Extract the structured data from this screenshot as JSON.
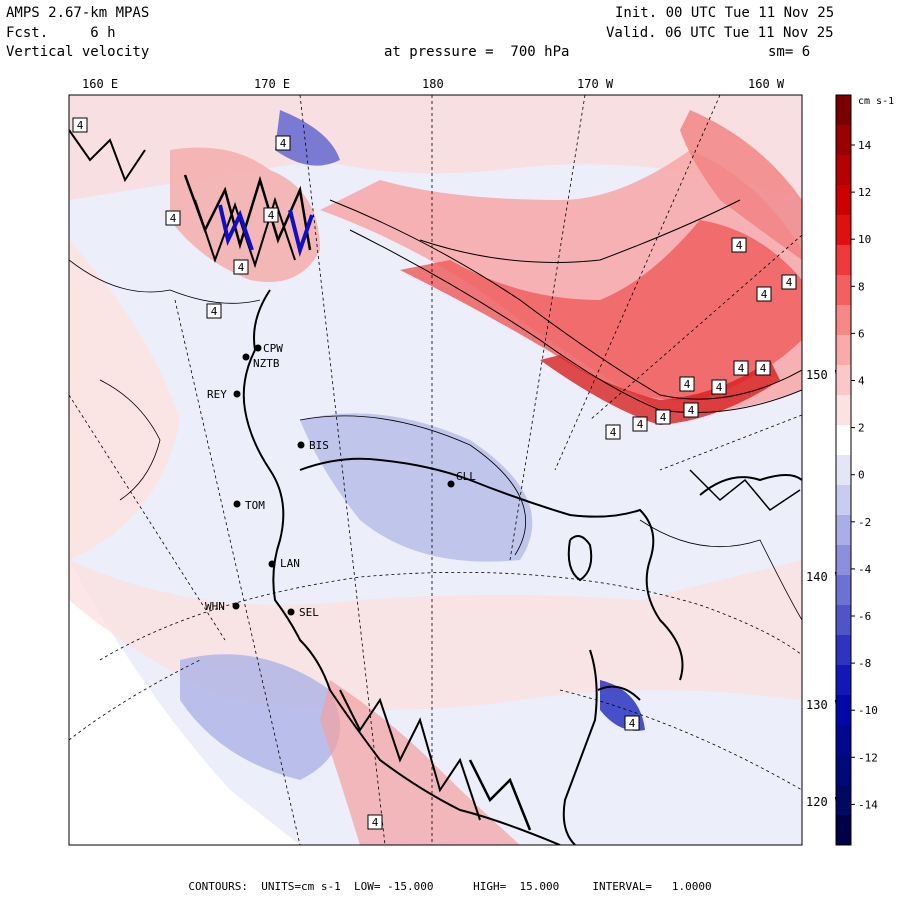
{
  "header": {
    "model": "AMPS 2.67-km MPAS",
    "fcst": "Fcst.     6 h",
    "field": "Vertical velocity",
    "init": "Init. 00 UTC Tue 11 Nov 25",
    "valid": "Valid. 06 UTC Tue 11 Nov 25",
    "pressure": "at pressure =  700 hPa",
    "smooth": "sm= 6"
  },
  "longitudes": [
    "160 E",
    "170 E",
    "180",
    "170 W",
    "160 W"
  ],
  "latitudes": [
    "150 W",
    "140 W",
    "130 W",
    "120 W"
  ],
  "colorbar": {
    "units": "cm s-1",
    "ticks": [
      "14",
      "12",
      "10",
      "8",
      "6",
      "4",
      "2",
      "0",
      "-2",
      "-4",
      "-6",
      "-8",
      "-10",
      "-12",
      "-14"
    ],
    "colors": [
      "#7a0000",
      "#9b0000",
      "#b40000",
      "#cd0000",
      "#e01010",
      "#ee3a3a",
      "#f46060",
      "#f78888",
      "#f9aaaa",
      "#fbc8c8",
      "#fde2e2",
      "#ffffff",
      "#e4e6f8",
      "#c8ccf0",
      "#a8aee6",
      "#8a90dc",
      "#6c72d2",
      "#4f55c8",
      "#2e34c0",
      "#1018b8",
      "#0008a8",
      "#000890",
      "#00087a",
      "#000860",
      "#000048"
    ]
  },
  "stations": [
    {
      "label": "CPW"
    },
    {
      "label": "NZTB"
    },
    {
      "label": "REY"
    },
    {
      "label": "BIS"
    },
    {
      "label": "GLL"
    },
    {
      "label": "TOM"
    },
    {
      "label": "LAN"
    },
    {
      "label": "WHN"
    },
    {
      "label": "SEL"
    }
  ],
  "markers": {
    "label": "4"
  },
  "footer": "CONTOURS:  UNITS=cm s-1  LOW= -15.000      HIGH=  15.000     INTERVAL=   1.0000"
}
